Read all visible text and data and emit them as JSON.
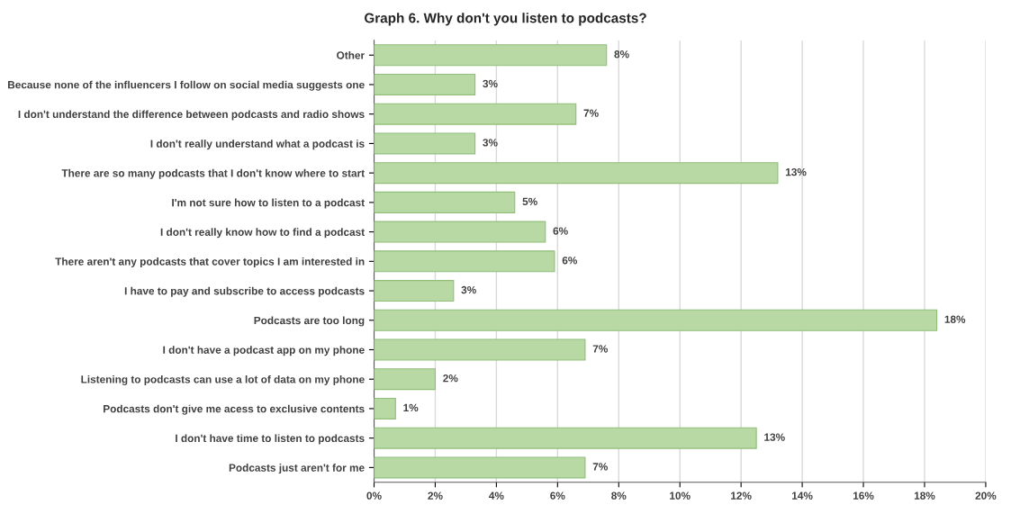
{
  "chart_data": {
    "type": "bar",
    "orientation": "horizontal",
    "title": "Graph 6. Why don't you listen to podcasts?",
    "categories": [
      "Other",
      "Because none of the influencers I follow on social media suggests one",
      "I don't understand the difference between podcasts and radio shows",
      "I don't really understand what a podcast is",
      "There are so many podcasts that I don't know where to start",
      "I'm not sure how to listen to a podcast",
      "I don't really know how to find a podcast",
      "There aren't any podcasts that cover topics I am interested in",
      "I have to pay and subscribe to access podcasts",
      "Podcasts are too long",
      "I don't have a podcast app on my phone",
      "Listening to podcasts can use a lot of data on my phone",
      "Podcasts don't give me acess to exclusive contents",
      "I don't have time to listen to podcasts",
      "Podcasts just aren't for me"
    ],
    "values": [
      7.6,
      3.3,
      6.6,
      3.3,
      13.2,
      4.6,
      5.6,
      5.9,
      2.6,
      18.4,
      6.9,
      2.0,
      0.7,
      12.5,
      6.9
    ],
    "value_labels": [
      "8%",
      "3%",
      "7%",
      "3%",
      "13%",
      "5%",
      "6%",
      "6%",
      "3%",
      "18%",
      "7%",
      "2%",
      "1%",
      "13%",
      "7%"
    ],
    "color": "#b8d9a4",
    "xlim": [
      0,
      20
    ],
    "xticks": [
      {
        "value": 0,
        "label": "0%"
      },
      {
        "value": 2,
        "label": "2%"
      },
      {
        "value": 4,
        "label": "4%"
      },
      {
        "value": 6,
        "label": "6%"
      },
      {
        "value": 8,
        "label": "8%"
      },
      {
        "value": 10,
        "label": "10%"
      },
      {
        "value": 12,
        "label": "12%"
      },
      {
        "value": 14,
        "label": "14%"
      },
      {
        "value": 16,
        "label": "16%"
      },
      {
        "value": 18,
        "label": "18%"
      },
      {
        "value": 20,
        "label": "20%"
      }
    ],
    "grid": "x",
    "legend": false
  }
}
